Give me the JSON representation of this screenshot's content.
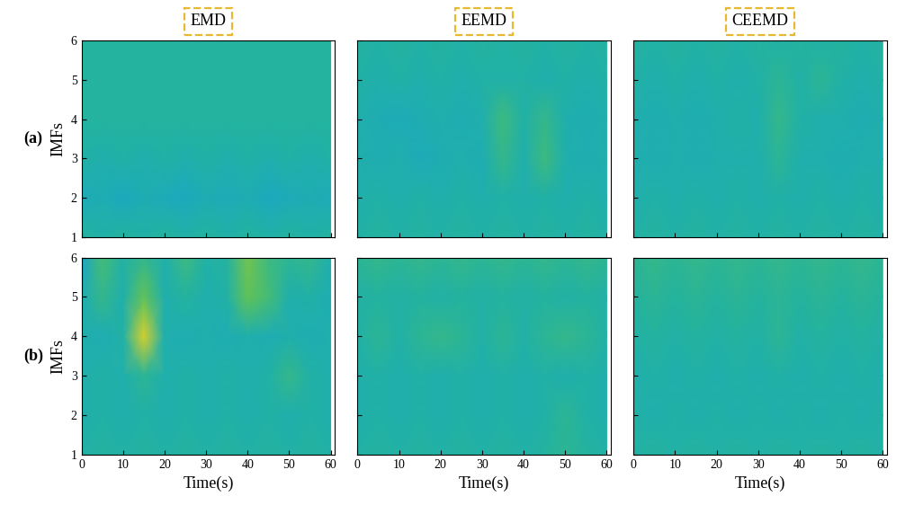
{
  "chart_data": [
    {
      "type": "heatmap",
      "title": "EMD",
      "annotation": "(a)",
      "y_label": "IMFs",
      "tick_labels": "y",
      "xlim": [
        0,
        61
      ],
      "xticks": [
        0,
        10,
        20,
        30,
        40,
        50,
        60
      ],
      "ylim": [
        1,
        6
      ],
      "yticks": [
        1,
        2,
        3,
        4,
        5,
        6
      ],
      "x": [
        0,
        5,
        10,
        15,
        20,
        25,
        30,
        35,
        40,
        45,
        50,
        55,
        60
      ],
      "y": [
        1,
        2,
        3,
        4,
        5,
        6
      ],
      "clim": [
        -1,
        1
      ],
      "cells": [
        [
          0.0,
          -0.05,
          0.0,
          -0.05,
          0.0,
          -0.05,
          0.0,
          -0.05,
          0.0,
          -0.05,
          0.0,
          -0.05,
          0.0
        ],
        [
          -0.2,
          -0.15,
          -0.25,
          -0.15,
          -0.2,
          -0.25,
          -0.15,
          -0.2,
          -0.15,
          -0.25,
          -0.2,
          -0.15,
          -0.2
        ],
        [
          -0.05,
          -0.1,
          -0.05,
          -0.1,
          -0.05,
          -0.1,
          -0.05,
          -0.1,
          -0.05,
          -0.1,
          -0.05,
          -0.1,
          -0.05
        ],
        [
          0.0,
          0.0,
          0.0,
          0.0,
          0.0,
          0.0,
          0.0,
          0.0,
          0.0,
          0.0,
          0.0,
          0.0,
          0.0
        ],
        [
          0.0,
          0.0,
          0.0,
          0.0,
          0.0,
          0.0,
          0.0,
          0.0,
          0.0,
          0.0,
          0.0,
          0.0,
          0.0
        ],
        [
          0.0,
          0.0,
          0.0,
          0.0,
          0.0,
          0.0,
          0.0,
          0.0,
          0.0,
          0.0,
          0.0,
          0.0,
          0.0
        ]
      ]
    },
    {
      "type": "heatmap",
      "title": "EEMD",
      "tick_labels": false,
      "xlim": [
        0,
        61
      ],
      "xticks": [
        0,
        10,
        20,
        30,
        40,
        50,
        60
      ],
      "ylim": [
        1,
        6
      ],
      "yticks": [
        1,
        2,
        3,
        4,
        5,
        6
      ],
      "x": [
        0,
        5,
        10,
        15,
        20,
        25,
        30,
        35,
        40,
        45,
        50,
        55,
        60
      ],
      "y": [
        1,
        2,
        3,
        4,
        5,
        6
      ],
      "clim": [
        -1,
        1
      ],
      "cells": [
        [
          -0.05,
          0.0,
          -0.05,
          0.0,
          -0.05,
          0.0,
          -0.05,
          0.0,
          -0.05,
          0.0,
          -0.05,
          0.0,
          -0.05
        ],
        [
          -0.1,
          -0.05,
          -0.1,
          -0.05,
          -0.1,
          -0.05,
          -0.1,
          -0.05,
          -0.1,
          -0.05,
          -0.1,
          -0.05,
          -0.1
        ],
        [
          -0.1,
          -0.15,
          -0.1,
          -0.2,
          -0.15,
          -0.1,
          -0.15,
          0.1,
          -0.1,
          0.15,
          -0.1,
          -0.15,
          -0.1
        ],
        [
          -0.1,
          -0.15,
          -0.2,
          -0.15,
          -0.1,
          -0.15,
          -0.1,
          0.15,
          -0.05,
          0.1,
          -0.1,
          -0.15,
          -0.1
        ],
        [
          -0.05,
          -0.1,
          -0.05,
          -0.1,
          -0.05,
          -0.1,
          -0.05,
          -0.05,
          -0.05,
          -0.1,
          -0.05,
          -0.1,
          -0.05
        ],
        [
          0.0,
          -0.05,
          0.0,
          -0.05,
          0.0,
          -0.05,
          0.0,
          -0.05,
          0.0,
          -0.05,
          0.0,
          -0.05,
          0.0
        ]
      ]
    },
    {
      "type": "heatmap",
      "title": "CEEMD",
      "tick_labels": false,
      "xlim": [
        0,
        61
      ],
      "xticks": [
        0,
        10,
        20,
        30,
        40,
        50,
        60
      ],
      "ylim": [
        1,
        6
      ],
      "yticks": [
        1,
        2,
        3,
        4,
        5,
        6
      ],
      "x": [
        0,
        5,
        10,
        15,
        20,
        25,
        30,
        35,
        40,
        45,
        50,
        55,
        60
      ],
      "y": [
        1,
        2,
        3,
        4,
        5,
        6
      ],
      "clim": [
        -1,
        1
      ],
      "cells": [
        [
          -0.05,
          0.0,
          -0.05,
          0.0,
          -0.05,
          0.0,
          -0.05,
          0.0,
          -0.05,
          0.0,
          -0.05,
          0.0,
          -0.05
        ],
        [
          -0.1,
          -0.05,
          -0.1,
          -0.05,
          -0.1,
          -0.05,
          -0.1,
          -0.05,
          -0.1,
          -0.05,
          -0.1,
          -0.05,
          -0.1
        ],
        [
          -0.1,
          -0.15,
          -0.1,
          -0.15,
          -0.1,
          -0.1,
          -0.1,
          0.05,
          -0.1,
          -0.1,
          -0.15,
          -0.1,
          -0.1
        ],
        [
          -0.1,
          -0.15,
          -0.1,
          -0.15,
          -0.1,
          -0.05,
          -0.1,
          0.1,
          -0.05,
          -0.1,
          -0.1,
          -0.15,
          -0.1
        ],
        [
          -0.05,
          -0.1,
          -0.05,
          -0.1,
          -0.05,
          -0.1,
          -0.05,
          0.05,
          -0.05,
          0.05,
          -0.05,
          -0.1,
          -0.05
        ],
        [
          0.0,
          -0.05,
          0.0,
          -0.05,
          0.0,
          -0.05,
          0.0,
          -0.05,
          0.0,
          -0.05,
          0.0,
          -0.05,
          0.0
        ]
      ]
    },
    {
      "type": "heatmap",
      "annotation": "(b)",
      "y_label": "IMFs",
      "x_label": "Time(s)",
      "tick_labels": true,
      "xlim": [
        0,
        61
      ],
      "xticks": [
        0,
        10,
        20,
        30,
        40,
        50,
        60
      ],
      "ylim": [
        1,
        6
      ],
      "yticks": [
        1,
        2,
        3,
        4,
        5,
        6
      ],
      "x": [
        0,
        5,
        10,
        15,
        20,
        25,
        30,
        35,
        40,
        45,
        50,
        55,
        60
      ],
      "y": [
        1,
        2,
        3,
        4,
        5,
        6
      ],
      "clim": [
        -1,
        1
      ],
      "cells": [
        [
          -0.05,
          0.0,
          -0.05,
          0.0,
          -0.05,
          0.0,
          -0.05,
          0.0,
          -0.05,
          0.0,
          -0.05,
          0.0,
          -0.05
        ],
        [
          -0.1,
          -0.05,
          -0.1,
          -0.05,
          -0.1,
          -0.05,
          -0.1,
          -0.05,
          -0.1,
          -0.05,
          -0.1,
          -0.05,
          -0.1
        ],
        [
          -0.1,
          -0.05,
          -0.1,
          0.05,
          -0.1,
          -0.05,
          -0.1,
          -0.05,
          -0.1,
          -0.05,
          0.1,
          -0.05,
          -0.1
        ],
        [
          -0.1,
          -0.15,
          -0.05,
          0.75,
          -0.1,
          -0.15,
          -0.1,
          -0.15,
          -0.1,
          -0.15,
          -0.1,
          -0.15,
          -0.1
        ],
        [
          -0.15,
          0.1,
          -0.1,
          0.35,
          -0.1,
          0.0,
          -0.1,
          -0.05,
          0.35,
          0.2,
          -0.1,
          -0.05,
          -0.15
        ],
        [
          -0.35,
          0.2,
          -0.05,
          0.1,
          -0.1,
          0.15,
          -0.05,
          0.0,
          0.4,
          0.15,
          0.05,
          0.1,
          -0.1
        ]
      ]
    },
    {
      "type": "heatmap",
      "x_label": "Time(s)",
      "tick_labels": "x",
      "xlim": [
        0,
        61
      ],
      "xticks": [
        0,
        10,
        20,
        30,
        40,
        50,
        60
      ],
      "ylim": [
        1,
        6
      ],
      "yticks": [
        1,
        2,
        3,
        4,
        5,
        6
      ],
      "x": [
        0,
        5,
        10,
        15,
        20,
        25,
        30,
        35,
        40,
        45,
        50,
        55,
        60
      ],
      "y": [
        1,
        2,
        3,
        4,
        5,
        6
      ],
      "clim": [
        -1,
        1
      ],
      "cells": [
        [
          -0.05,
          0.0,
          -0.05,
          0.0,
          -0.05,
          0.0,
          -0.05,
          0.0,
          -0.05,
          0.0,
          0.05,
          0.0,
          -0.05
        ],
        [
          -0.1,
          -0.05,
          -0.1,
          -0.05,
          -0.1,
          -0.05,
          -0.1,
          -0.05,
          -0.1,
          -0.05,
          0.05,
          -0.05,
          -0.1
        ],
        [
          -0.1,
          -0.05,
          -0.1,
          -0.05,
          -0.1,
          -0.05,
          -0.1,
          -0.05,
          -0.1,
          -0.05,
          -0.1,
          -0.05,
          -0.1
        ],
        [
          -0.05,
          0.05,
          -0.05,
          0.05,
          0.1,
          0.05,
          -0.05,
          0.05,
          -0.05,
          0.05,
          0.1,
          0.05,
          -0.05
        ],
        [
          -0.05,
          0.0,
          -0.05,
          0.0,
          -0.05,
          0.0,
          -0.05,
          0.0,
          -0.05,
          0.0,
          -0.05,
          0.0,
          -0.05
        ],
        [
          0.05,
          0.1,
          0.05,
          0.1,
          0.05,
          0.1,
          0.05,
          0.1,
          0.05,
          0.1,
          0.05,
          0.1,
          0.05
        ]
      ]
    },
    {
      "type": "heatmap",
      "x_label": "Time(s)",
      "tick_labels": "x",
      "xlim": [
        0,
        61
      ],
      "xticks": [
        0,
        10,
        20,
        30,
        40,
        50,
        60
      ],
      "ylim": [
        1,
        6
      ],
      "yticks": [
        1,
        2,
        3,
        4,
        5,
        6
      ],
      "x": [
        0,
        5,
        10,
        15,
        20,
        25,
        30,
        35,
        40,
        45,
        50,
        55,
        60
      ],
      "y": [
        1,
        2,
        3,
        4,
        5,
        6
      ],
      "clim": [
        -1,
        1
      ],
      "cells": [
        [
          -0.05,
          0.0,
          -0.05,
          0.0,
          -0.05,
          0.0,
          -0.05,
          0.0,
          -0.05,
          0.0,
          -0.05,
          0.0,
          -0.05
        ],
        [
          -0.05,
          -0.1,
          -0.05,
          -0.1,
          -0.05,
          -0.1,
          -0.05,
          -0.1,
          -0.05,
          -0.1,
          -0.05,
          -0.1,
          -0.05
        ],
        [
          -0.1,
          -0.05,
          -0.1,
          -0.05,
          -0.1,
          -0.05,
          -0.1,
          -0.05,
          -0.1,
          -0.05,
          -0.1,
          -0.05,
          -0.1
        ],
        [
          -0.05,
          0.0,
          -0.05,
          0.0,
          -0.05,
          0.0,
          -0.05,
          0.05,
          -0.05,
          0.0,
          -0.05,
          0.0,
          -0.05
        ],
        [
          0.0,
          0.05,
          0.0,
          0.05,
          0.0,
          0.05,
          0.0,
          0.05,
          0.0,
          0.05,
          0.0,
          0.05,
          0.0
        ],
        [
          0.05,
          0.1,
          0.05,
          0.1,
          0.05,
          0.1,
          0.05,
          0.1,
          0.05,
          0.1,
          0.05,
          0.1,
          0.05
        ]
      ]
    }
  ]
}
